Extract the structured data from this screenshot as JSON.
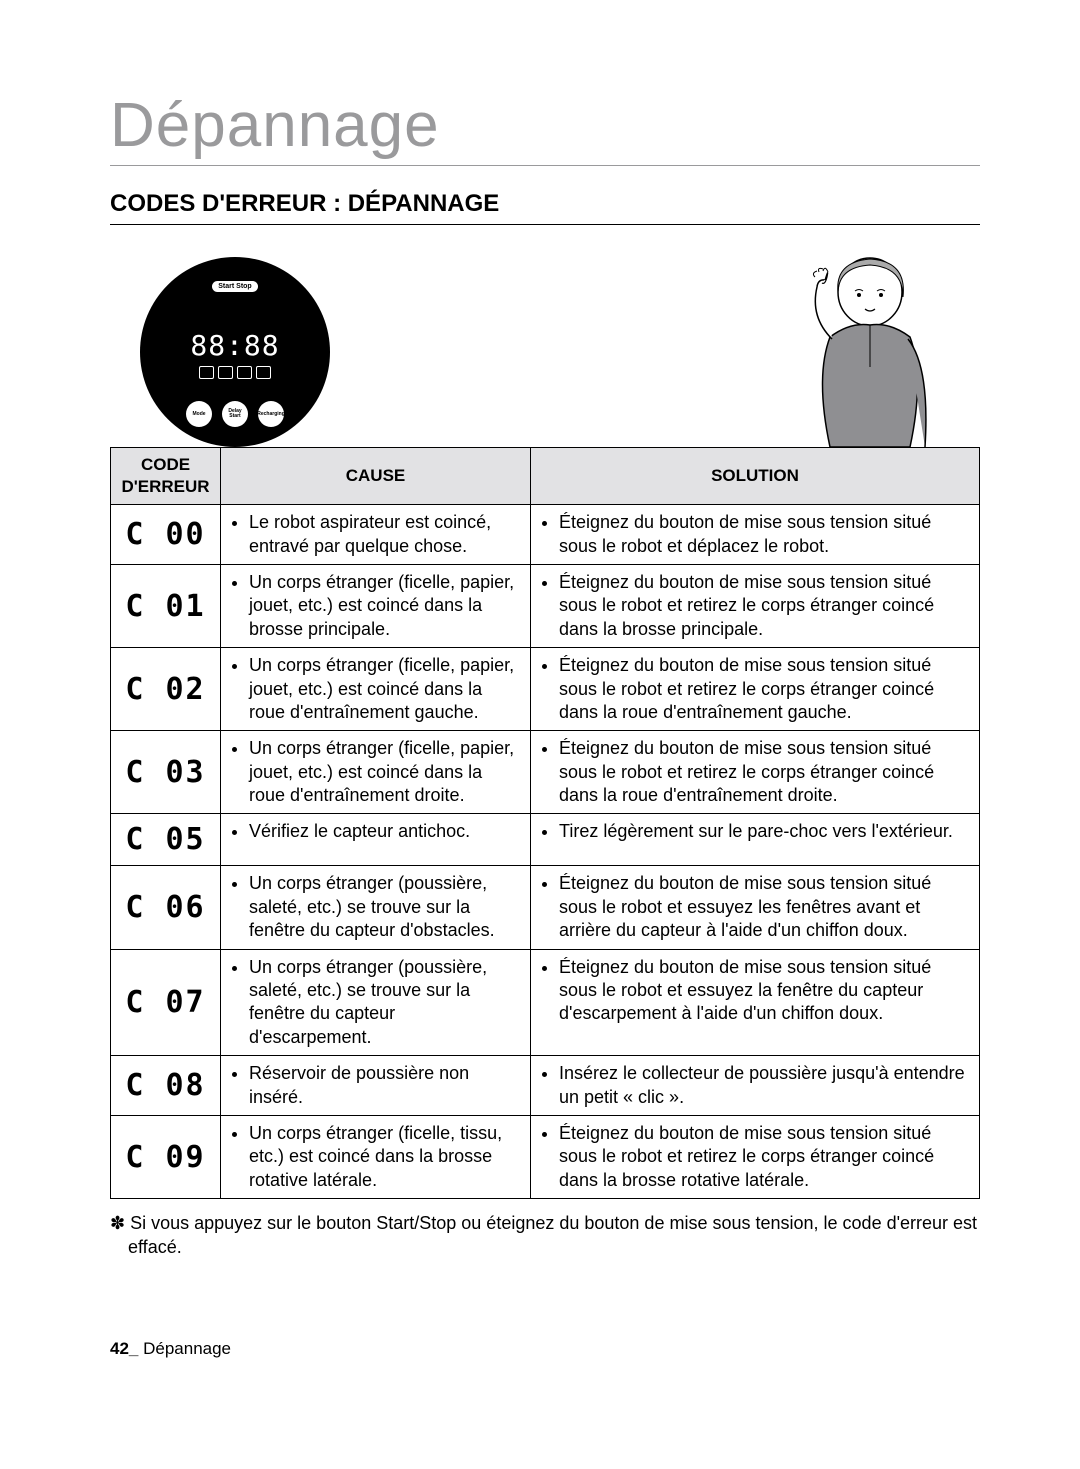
{
  "page_title": "Dépannage",
  "section_title": "CODES D'ERREUR : DÉPANNAGE",
  "robot": {
    "startstop": "Start\nStop",
    "digits": "88:88",
    "btn_mode": "Mode",
    "btn_delay": "Delay Start",
    "btn_recharge": "Recharging"
  },
  "headers": {
    "code": "CODE D'ERREUR",
    "cause": "CAUSE",
    "solution": "SOLUTION"
  },
  "rows": [
    {
      "code": "C 00",
      "cause": "Le robot aspirateur est coincé, entravé par quelque chose.",
      "solution": "Éteignez du bouton de mise sous tension situé sous le robot et déplacez le robot."
    },
    {
      "code": "C 01",
      "cause": "Un corps étranger (ficelle, papier, jouet, etc.) est coincé dans la brosse principale.",
      "solution": "Éteignez du bouton de mise sous tension situé sous le robot et retirez le corps étranger coincé dans la brosse principale."
    },
    {
      "code": "C 02",
      "cause": "Un corps étranger (ficelle, papier, jouet, etc.) est coincé dans la roue d'entraînement gauche.",
      "solution": "Éteignez du bouton de mise sous tension situé sous le robot et retirez le corps étranger coincé dans la roue d'entraînement gauche."
    },
    {
      "code": "C 03",
      "cause": "Un corps étranger (ficelle, papier, jouet, etc.) est coincé dans la roue d'entraînement droite.",
      "solution": "Éteignez du bouton de mise sous tension situé sous le robot et retirez le corps étranger coincé dans la roue d'entraînement droite."
    },
    {
      "code": "C 05",
      "cause": "Vérifiez le capteur antichoc.",
      "solution": "Tirez légèrement sur le pare-choc vers l'extérieur."
    },
    {
      "code": "C 06",
      "cause": "Un corps étranger (poussière, saleté, etc.) se trouve sur la fenêtre du capteur d'obstacles.",
      "solution": "Éteignez du bouton de mise sous tension situé sous le robot et essuyez les fenêtres avant et arrière du capteur à l'aide d'un chiffon doux."
    },
    {
      "code": "C 07",
      "cause": "Un corps étranger (poussière, saleté, etc.) se trouve sur la fenêtre du capteur d'escarpement.",
      "solution": "Éteignez du bouton de mise sous tension situé sous le robot et essuyez la fenêtre du capteur d'escarpement à l'aide d'un chiffon doux."
    },
    {
      "code": "C 08",
      "cause": "Réservoir de poussière non inséré.",
      "solution": "Insérez le collecteur de poussière jusqu'à entendre un petit « clic »."
    },
    {
      "code": "C 09",
      "cause": "Un corps étranger (ficelle, tissu, etc.) est coincé dans la brosse rotative latérale.",
      "solution": "Éteignez du bouton de mise sous tension situé sous le robot et retirez le corps étranger coincé dans la brosse rotative latérale."
    }
  ],
  "footnote": "✽ Si vous appuyez sur le bouton Start/Stop ou éteignez du bouton de mise sous tension, le code d'erreur est effacé.",
  "footer_num": "42_",
  "footer_text": " Dépannage"
}
